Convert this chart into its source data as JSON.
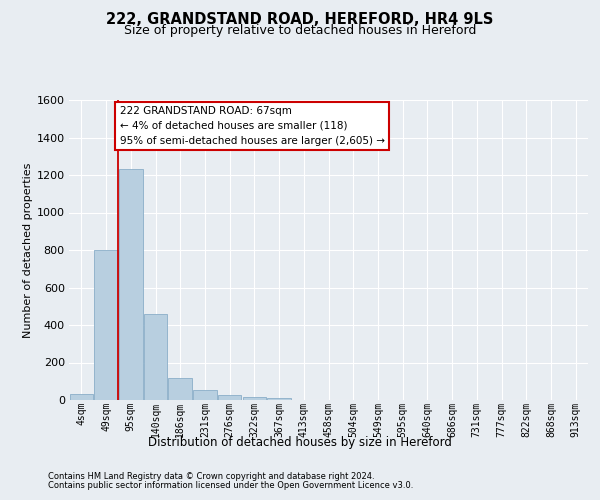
{
  "title": "222, GRANDSTAND ROAD, HEREFORD, HR4 9LS",
  "subtitle": "Size of property relative to detached houses in Hereford",
  "xlabel": "Distribution of detached houses by size in Hereford",
  "ylabel": "Number of detached properties",
  "categories": [
    "4sqm",
    "49sqm",
    "95sqm",
    "140sqm",
    "186sqm",
    "231sqm",
    "276sqm",
    "322sqm",
    "367sqm",
    "413sqm",
    "458sqm",
    "504sqm",
    "549sqm",
    "595sqm",
    "640sqm",
    "686sqm",
    "731sqm",
    "777sqm",
    "822sqm",
    "868sqm",
    "913sqm"
  ],
  "values": [
    30,
    800,
    1230,
    460,
    120,
    55,
    25,
    14,
    10,
    0,
    0,
    0,
    0,
    0,
    0,
    0,
    0,
    0,
    0,
    0,
    0
  ],
  "bar_color": "#b8cfe0",
  "bar_edge_color": "#8aaec8",
  "red_line_x": 1.5,
  "annotation_title": "222 GRANDSTAND ROAD: 67sqm",
  "annotation_line1": "← 4% of detached houses are smaller (118)",
  "annotation_line2": "95% of semi-detached houses are larger (2,605) →",
  "annotation_box_facecolor": "#ffffff",
  "annotation_box_edgecolor": "#cc0000",
  "ylim": [
    0,
    1600
  ],
  "yticks": [
    0,
    200,
    400,
    600,
    800,
    1000,
    1200,
    1400,
    1600
  ],
  "bg_color": "#e8edf2",
  "plot_bg_color": "#e8edf2",
  "grid_color": "#ffffff",
  "title_fontsize": 10.5,
  "subtitle_fontsize": 9,
  "footer1": "Contains HM Land Registry data © Crown copyright and database right 2024.",
  "footer2": "Contains public sector information licensed under the Open Government Licence v3.0."
}
